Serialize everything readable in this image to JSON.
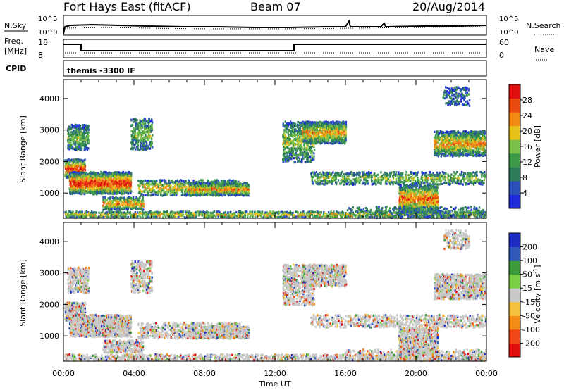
{
  "header": {
    "station": "Fort Hays East (fitACF)",
    "beam": "Beam 07",
    "date": "20/Aug/2014"
  },
  "noise_panel": {
    "left_label": "N.Sky",
    "right_label": "N.Search",
    "left_ticks": [
      "10^5",
      "10^0"
    ],
    "right_ticks": [
      "10^5",
      "10^0"
    ]
  },
  "freq_panel": {
    "left_label_1": "Freq.",
    "left_label_2": "[MHz]",
    "right_label": "Nave",
    "left_ticks": [
      "18",
      "8"
    ],
    "right_ticks": [
      "60",
      "0"
    ]
  },
  "cpid_panel": {
    "left_label": "CPID",
    "program": "themis -3300 IF"
  },
  "chart_data": [
    {
      "type": "heatmap",
      "ylabel": "Slant Range [km]",
      "yticks": [
        "1000",
        "2000",
        "3000",
        "4000"
      ],
      "ylim": [
        200,
        4600
      ],
      "colorbar": {
        "label": "Power [dB]",
        "ticks": [
          "4",
          "8",
          "12",
          "16",
          "20",
          "24",
          "28"
        ],
        "colors": [
          "#1f2bd8",
          "#2d4fb8",
          "#2e7d5a",
          "#3c9a4a",
          "#7cc04a",
          "#e8c21c",
          "#f08a14",
          "#e84a10",
          "#e01010"
        ]
      }
    },
    {
      "type": "heatmap",
      "ylabel": "Velocity [m s^-1]",
      "left_ylabel": "Slant Range [km]",
      "yticks": [
        "1000",
        "2000",
        "3000",
        "4000"
      ],
      "ylim": [
        200,
        4600
      ],
      "colorbar": {
        "label": "Velocity [m s",
        "label_sup": "-1",
        "label_end": "]",
        "ticks": [
          "-200",
          "-100",
          "-50",
          "-15",
          "15",
          "50",
          "100",
          "200"
        ],
        "colors": [
          "#e01010",
          "#f04818",
          "#f48c18",
          "#f4c040",
          "#c8c8c8",
          "#7cd048",
          "#3c9a3c",
          "#3058b8",
          "#1c2cc0"
        ]
      }
    }
  ],
  "x_axis": {
    "label": "Time UT",
    "ticks": [
      "00:00",
      "04:00",
      "08:00",
      "12:00",
      "16:00",
      "20:00",
      "00:00"
    ]
  }
}
